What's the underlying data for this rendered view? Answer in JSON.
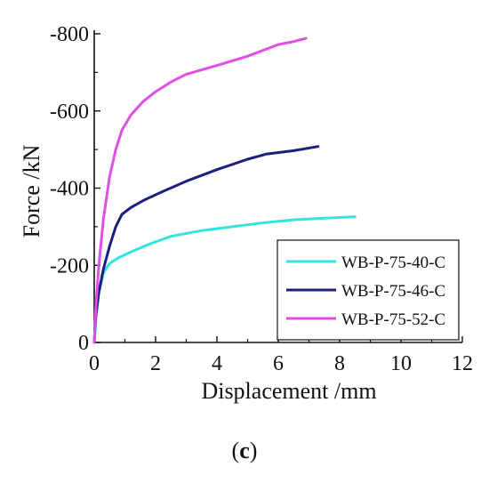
{
  "chart_data": {
    "type": "line",
    "title": "",
    "xlabel": "Displacement /mm",
    "ylabel": "Force /kN",
    "xlim": [
      0,
      12
    ],
    "ylim": [
      0,
      -800
    ],
    "x_ticks": [
      "0",
      "2",
      "4",
      "6",
      "8",
      "10",
      "12"
    ],
    "y_ticks": [
      "0",
      "-200",
      "-400",
      "-600",
      "-800"
    ],
    "grid": false,
    "legend_position": "bottom-right",
    "series": [
      {
        "name": "WB-P-75-40-C",
        "color": "#33e3e0",
        "x": [
          0,
          0.05,
          0.15,
          0.3,
          0.5,
          0.8,
          1.2,
          1.8,
          2.5,
          3.5,
          4.5,
          5.5,
          6.5,
          7.5,
          8.0,
          8.5
        ],
        "y": [
          0,
          -60,
          -130,
          -180,
          -205,
          -220,
          -235,
          -255,
          -275,
          -290,
          -300,
          -310,
          -318,
          -322,
          -324,
          -326
        ]
      },
      {
        "name": "WB-P-75-46-C",
        "color": "#1b1f7d",
        "x": [
          0,
          0.05,
          0.15,
          0.3,
          0.5,
          0.7,
          0.9,
          1.2,
          1.6,
          2.2,
          3.0,
          4.0,
          5.0,
          5.6,
          6.5,
          7.3
        ],
        "y": [
          0,
          -70,
          -130,
          -190,
          -250,
          -300,
          -332,
          -350,
          -368,
          -390,
          -418,
          -448,
          -475,
          -488,
          -497,
          -508
        ]
      },
      {
        "name": "WB-P-75-52-C",
        "color": "#e14ee6",
        "x": [
          0,
          0.05,
          0.15,
          0.3,
          0.5,
          0.7,
          0.9,
          1.2,
          1.6,
          2.0,
          2.5,
          3.0,
          4.0,
          5.0,
          6.0,
          6.5,
          6.9
        ],
        "y": [
          0,
          -90,
          -200,
          -320,
          -430,
          -500,
          -550,
          -590,
          -625,
          -650,
          -675,
          -695,
          -718,
          -742,
          -772,
          -780,
          -788
        ]
      }
    ]
  },
  "caption": {
    "open": "(",
    "letter": "c",
    "close": ")"
  }
}
